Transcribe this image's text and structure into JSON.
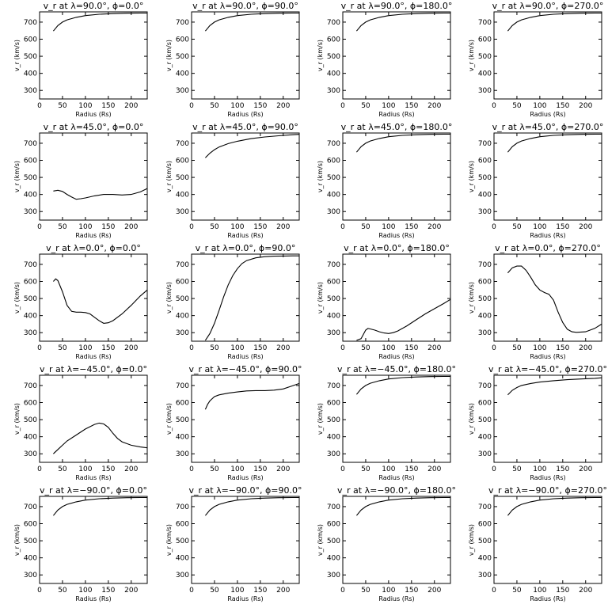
{
  "chart_data": [
    {
      "type": "line",
      "title": "v_r at λ=90.0°, ϕ=0.0°",
      "xlabel": "Radius (Rs)",
      "ylabel": "v_r (km/s)",
      "xlim": [
        0,
        235
      ],
      "ylim": [
        250,
        760
      ],
      "xticks": [
        0,
        50,
        100,
        150,
        200
      ],
      "yticks": [
        300,
        400,
        500,
        600,
        700
      ],
      "grid": false,
      "x": [
        30,
        40,
        50,
        60,
        80,
        100,
        130,
        160,
        190,
        220,
        235
      ],
      "y": [
        648,
        680,
        700,
        713,
        728,
        738,
        746,
        750,
        752,
        753,
        753
      ]
    },
    {
      "type": "line",
      "title": "v_r at λ=90.0°, ϕ=90.0°",
      "xlabel": "Radius (Rs)",
      "ylabel": "v_r (km/s)",
      "xlim": [
        0,
        235
      ],
      "ylim": [
        250,
        760
      ],
      "xticks": [
        0,
        50,
        100,
        150,
        200
      ],
      "yticks": [
        300,
        400,
        500,
        600,
        700
      ],
      "grid": false,
      "x": [
        30,
        40,
        50,
        60,
        80,
        100,
        130,
        160,
        190,
        220,
        235
      ],
      "y": [
        648,
        680,
        700,
        713,
        728,
        738,
        746,
        750,
        752,
        753,
        753
      ]
    },
    {
      "type": "line",
      "title": "v_r at λ=90.0°, ϕ=180.0°",
      "xlabel": "Radius (Rs)",
      "ylabel": "v_r (km/s)",
      "xlim": [
        0,
        235
      ],
      "ylim": [
        250,
        760
      ],
      "xticks": [
        0,
        50,
        100,
        150,
        200
      ],
      "yticks": [
        300,
        400,
        500,
        600,
        700
      ],
      "grid": false,
      "x": [
        30,
        40,
        50,
        60,
        80,
        100,
        130,
        160,
        190,
        220,
        235
      ],
      "y": [
        648,
        680,
        700,
        713,
        728,
        738,
        746,
        750,
        752,
        753,
        753
      ]
    },
    {
      "type": "line",
      "title": "v_r at λ=90.0°, ϕ=270.0°",
      "xlabel": "Radius (Rs)",
      "ylabel": "v_r (km/s)",
      "xlim": [
        0,
        235
      ],
      "ylim": [
        250,
        760
      ],
      "xticks": [
        0,
        50,
        100,
        150,
        200
      ],
      "yticks": [
        300,
        400,
        500,
        600,
        700
      ],
      "grid": false,
      "x": [
        30,
        40,
        50,
        60,
        80,
        100,
        130,
        160,
        190,
        220,
        235
      ],
      "y": [
        648,
        680,
        700,
        713,
        728,
        738,
        746,
        750,
        752,
        753,
        753
      ]
    },
    {
      "type": "line",
      "title": "v_r at λ=45.0°, ϕ=0.0°",
      "xlabel": "Radius (Rs)",
      "ylabel": "v_r (km/s)",
      "xlim": [
        0,
        235
      ],
      "ylim": [
        250,
        760
      ],
      "xticks": [
        0,
        50,
        100,
        150,
        200
      ],
      "yticks": [
        300,
        400,
        500,
        600,
        700
      ],
      "grid": false,
      "x": [
        30,
        40,
        50,
        60,
        70,
        80,
        90,
        100,
        120,
        140,
        160,
        180,
        200,
        220,
        235
      ],
      "y": [
        420,
        425,
        418,
        400,
        385,
        372,
        375,
        380,
        392,
        400,
        400,
        397,
        400,
        415,
        435
      ]
    },
    {
      "type": "line",
      "title": "v_r at λ=45.0°, ϕ=90.0°",
      "xlabel": "Radius (Rs)",
      "ylabel": "v_r (km/s)",
      "xlim": [
        0,
        235
      ],
      "ylim": [
        250,
        760
      ],
      "xticks": [
        0,
        50,
        100,
        150,
        200
      ],
      "yticks": [
        300,
        400,
        500,
        600,
        700
      ],
      "grid": false,
      "x": [
        30,
        40,
        50,
        60,
        80,
        100,
        130,
        160,
        190,
        220,
        235
      ],
      "y": [
        615,
        642,
        662,
        678,
        698,
        712,
        727,
        737,
        744,
        750,
        752
      ]
    },
    {
      "type": "line",
      "title": "v_r at λ=45.0°, ϕ=180.0°",
      "xlabel": "Radius (Rs)",
      "ylabel": "v_r (km/s)",
      "xlim": [
        0,
        235
      ],
      "ylim": [
        250,
        760
      ],
      "xticks": [
        0,
        50,
        100,
        150,
        200
      ],
      "yticks": [
        300,
        400,
        500,
        600,
        700
      ],
      "grid": false,
      "x": [
        30,
        40,
        50,
        60,
        80,
        100,
        130,
        160,
        190,
        220,
        235
      ],
      "y": [
        648,
        680,
        700,
        713,
        728,
        738,
        746,
        750,
        752,
        753,
        753
      ]
    },
    {
      "type": "line",
      "title": "v_r at λ=45.0°, ϕ=270.0°",
      "xlabel": "Radius (Rs)",
      "ylabel": "v_r (km/s)",
      "xlim": [
        0,
        235
      ],
      "ylim": [
        250,
        760
      ],
      "xticks": [
        0,
        50,
        100,
        150,
        200
      ],
      "yticks": [
        300,
        400,
        500,
        600,
        700
      ],
      "grid": false,
      "x": [
        30,
        40,
        50,
        60,
        80,
        100,
        130,
        160,
        190,
        220,
        235
      ],
      "y": [
        648,
        680,
        700,
        713,
        728,
        738,
        746,
        750,
        752,
        753,
        753
      ]
    },
    {
      "type": "line",
      "title": "v_r at λ=0.0°, ϕ=0.0°",
      "xlabel": "Radius (Rs)",
      "ylabel": "v_r (km/s)",
      "xlim": [
        0,
        235
      ],
      "ylim": [
        250,
        760
      ],
      "xticks": [
        0,
        50,
        100,
        150,
        200
      ],
      "yticks": [
        300,
        400,
        500,
        600,
        700
      ],
      "grid": false,
      "x": [
        30,
        35,
        40,
        50,
        60,
        70,
        80,
        90,
        100,
        110,
        120,
        130,
        140,
        150,
        160,
        180,
        200,
        220,
        235
      ],
      "y": [
        600,
        615,
        605,
        540,
        460,
        425,
        420,
        420,
        418,
        410,
        390,
        370,
        355,
        358,
        370,
        410,
        460,
        515,
        550
      ]
    },
    {
      "type": "line",
      "title": "v_r at λ=0.0°, ϕ=90.0°",
      "xlabel": "Radius (Rs)",
      "ylabel": "v_r (km/s)",
      "xlim": [
        0,
        235
      ],
      "ylim": [
        250,
        760
      ],
      "xticks": [
        0,
        50,
        100,
        150,
        200
      ],
      "yticks": [
        300,
        400,
        500,
        600,
        700
      ],
      "grid": false,
      "x": [
        30,
        40,
        50,
        60,
        70,
        80,
        90,
        100,
        110,
        120,
        140,
        160,
        180,
        200,
        220,
        235
      ],
      "y": [
        255,
        295,
        355,
        430,
        510,
        580,
        635,
        675,
        705,
        722,
        738,
        745,
        748,
        749,
        750,
        750
      ]
    },
    {
      "type": "line",
      "title": "v_r at λ=0.0°, ϕ=180.0°",
      "xlabel": "Radius (Rs)",
      "ylabel": "v_r (km/s)",
      "xlim": [
        0,
        235
      ],
      "ylim": [
        250,
        760
      ],
      "xticks": [
        0,
        50,
        100,
        150,
        200
      ],
      "yticks": [
        300,
        400,
        500,
        600,
        700
      ],
      "grid": false,
      "x": [
        30,
        40,
        45,
        50,
        55,
        60,
        70,
        80,
        90,
        100,
        110,
        120,
        140,
        160,
        180,
        200,
        220,
        235
      ],
      "y": [
        255,
        265,
        290,
        315,
        325,
        322,
        315,
        305,
        298,
        295,
        300,
        310,
        340,
        375,
        410,
        440,
        470,
        495
      ]
    },
    {
      "type": "line",
      "title": "v_r at λ=0.0°, ϕ=270.0°",
      "xlabel": "Radius (Rs)",
      "ylabel": "v_r (km/s)",
      "xlim": [
        0,
        235
      ],
      "ylim": [
        250,
        760
      ],
      "xticks": [
        0,
        50,
        100,
        150,
        200
      ],
      "yticks": [
        300,
        400,
        500,
        600,
        700
      ],
      "grid": false,
      "x": [
        30,
        40,
        50,
        60,
        70,
        80,
        90,
        100,
        110,
        120,
        130,
        140,
        150,
        160,
        170,
        180,
        200,
        220,
        235
      ],
      "y": [
        650,
        680,
        690,
        690,
        665,
        625,
        580,
        550,
        535,
        525,
        490,
        420,
        360,
        320,
        305,
        302,
        305,
        325,
        350
      ]
    },
    {
      "type": "line",
      "title": "v_r at λ=−45.0°, ϕ=0.0°",
      "xlabel": "Radius (Rs)",
      "ylabel": "v_r (km/s)",
      "xlim": [
        0,
        235
      ],
      "ylim": [
        250,
        760
      ],
      "xticks": [
        0,
        50,
        100,
        150,
        200
      ],
      "yticks": [
        300,
        400,
        500,
        600,
        700
      ],
      "grid": false,
      "x": [
        30,
        40,
        50,
        60,
        80,
        100,
        120,
        130,
        140,
        150,
        160,
        170,
        180,
        200,
        220,
        235
      ],
      "y": [
        300,
        325,
        350,
        375,
        410,
        445,
        472,
        480,
        475,
        455,
        420,
        390,
        370,
        350,
        340,
        335
      ]
    },
    {
      "type": "line",
      "title": "v_r at λ=−45.0°, ϕ=90.0°",
      "xlabel": "Radius (Rs)",
      "ylabel": "v_r (km/s)",
      "xlim": [
        0,
        235
      ],
      "ylim": [
        250,
        760
      ],
      "xticks": [
        0,
        50,
        100,
        150,
        200
      ],
      "yticks": [
        300,
        400,
        500,
        600,
        700
      ],
      "grid": false,
      "x": [
        30,
        35,
        40,
        50,
        60,
        80,
        100,
        120,
        140,
        160,
        180,
        200,
        220,
        235
      ],
      "y": [
        560,
        590,
        610,
        635,
        645,
        655,
        662,
        668,
        670,
        670,
        673,
        680,
        698,
        712
      ]
    },
    {
      "type": "line",
      "title": "v_r at λ=−45.0°, ϕ=180.0°",
      "xlabel": "Radius (Rs)",
      "ylabel": "v_r (km/s)",
      "xlim": [
        0,
        235
      ],
      "ylim": [
        250,
        760
      ],
      "xticks": [
        0,
        50,
        100,
        150,
        200
      ],
      "yticks": [
        300,
        400,
        500,
        600,
        700
      ],
      "grid": false,
      "x": [
        30,
        40,
        50,
        60,
        80,
        100,
        130,
        160,
        190,
        220,
        235
      ],
      "y": [
        648,
        680,
        700,
        713,
        728,
        738,
        746,
        750,
        752,
        753,
        753
      ]
    },
    {
      "type": "line",
      "title": "v_r at λ=−45.0°, ϕ=270.0°",
      "xlabel": "Radius (Rs)",
      "ylabel": "v_r (km/s)",
      "xlim": [
        0,
        235
      ],
      "ylim": [
        250,
        760
      ],
      "xticks": [
        0,
        50,
        100,
        150,
        200
      ],
      "yticks": [
        300,
        400,
        500,
        600,
        700
      ],
      "grid": false,
      "x": [
        30,
        40,
        50,
        60,
        80,
        100,
        130,
        160,
        190,
        220,
        235
      ],
      "y": [
        645,
        672,
        688,
        700,
        712,
        720,
        728,
        734,
        738,
        742,
        745
      ]
    },
    {
      "type": "line",
      "title": "v_r at λ=−90.0°, ϕ=0.0°",
      "xlabel": "Radius (Rs)",
      "ylabel": "v_r (km/s)",
      "xlim": [
        0,
        235
      ],
      "ylim": [
        250,
        760
      ],
      "xticks": [
        0,
        50,
        100,
        150,
        200
      ],
      "yticks": [
        300,
        400,
        500,
        600,
        700
      ],
      "grid": false,
      "x": [
        30,
        40,
        50,
        60,
        80,
        100,
        130,
        160,
        190,
        220,
        235
      ],
      "y": [
        648,
        680,
        700,
        713,
        728,
        738,
        746,
        750,
        752,
        753,
        753
      ]
    },
    {
      "type": "line",
      "title": "v_r at λ=−90.0°, ϕ=90.0°",
      "xlabel": "Radius (Rs)",
      "ylabel": "v_r (km/s)",
      "xlim": [
        0,
        235
      ],
      "ylim": [
        250,
        760
      ],
      "xticks": [
        0,
        50,
        100,
        150,
        200
      ],
      "yticks": [
        300,
        400,
        500,
        600,
        700
      ],
      "grid": false,
      "x": [
        30,
        40,
        50,
        60,
        80,
        100,
        130,
        160,
        190,
        220,
        235
      ],
      "y": [
        648,
        680,
        700,
        713,
        728,
        738,
        746,
        750,
        752,
        753,
        753
      ]
    },
    {
      "type": "line",
      "title": "v_r at λ=−90.0°, ϕ=180.0°",
      "xlabel": "Radius (Rs)",
      "ylabel": "v_r (km/s)",
      "xlim": [
        0,
        235
      ],
      "ylim": [
        250,
        760
      ],
      "xticks": [
        0,
        50,
        100,
        150,
        200
      ],
      "yticks": [
        300,
        400,
        500,
        600,
        700
      ],
      "grid": false,
      "x": [
        30,
        40,
        50,
        60,
        80,
        100,
        130,
        160,
        190,
        220,
        235
      ],
      "y": [
        648,
        680,
        700,
        713,
        728,
        738,
        746,
        750,
        752,
        753,
        753
      ]
    },
    {
      "type": "line",
      "title": "v_r at λ=−90.0°, ϕ=270.0°",
      "xlabel": "Radius (Rs)",
      "ylabel": "v_r (km/s)",
      "xlim": [
        0,
        235
      ],
      "ylim": [
        250,
        760
      ],
      "xticks": [
        0,
        50,
        100,
        150,
        200
      ],
      "yticks": [
        300,
        400,
        500,
        600,
        700
      ],
      "grid": false,
      "x": [
        30,
        40,
        50,
        60,
        80,
        100,
        130,
        160,
        190,
        220,
        235
      ],
      "y": [
        648,
        680,
        700,
        713,
        728,
        738,
        746,
        750,
        752,
        753,
        753
      ]
    }
  ]
}
